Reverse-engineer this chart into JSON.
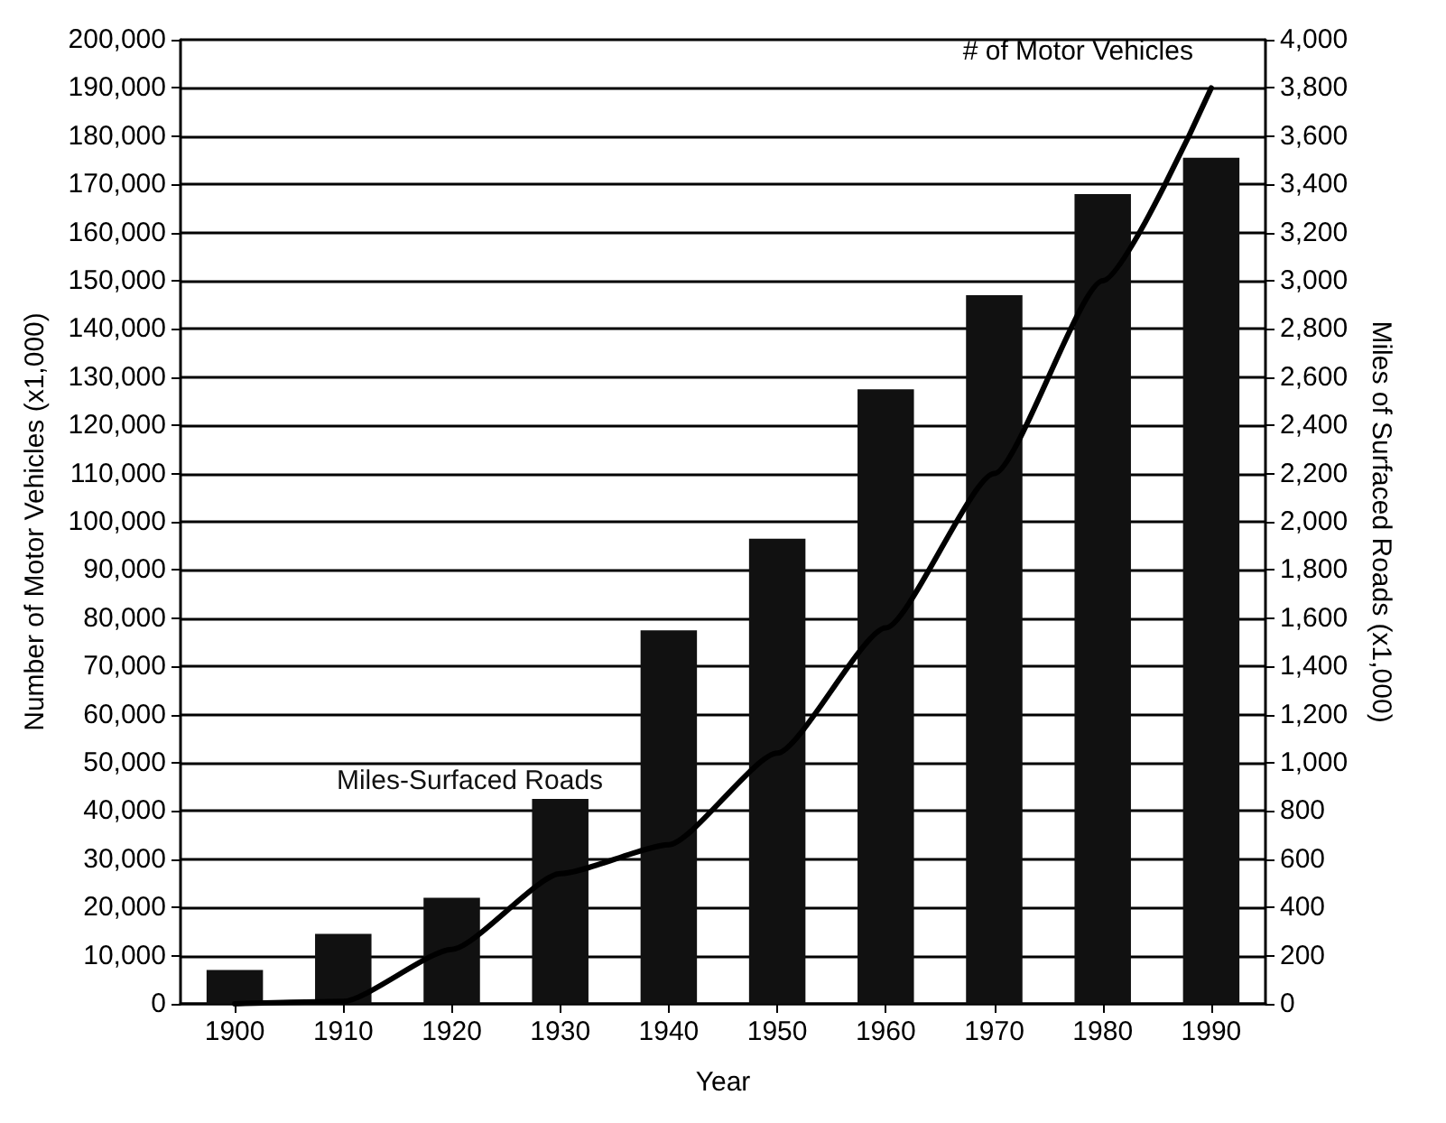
{
  "chart_data": {
    "type": "bar",
    "xlabel": "Year",
    "ylabel": "Number of Motor Vehicles (x1,000)",
    "y2label": "Miles of Surfaced Roads (x1,000)",
    "categories": [
      "1900",
      "1910",
      "1920",
      "1930",
      "1940",
      "1950",
      "1960",
      "1970",
      "1980",
      "1990"
    ],
    "series": [
      {
        "name": "Miles-Surfaced Roads",
        "axis": "y2",
        "color": "#111111",
        "values": [
          140,
          290,
          440,
          850,
          1550,
          1930,
          2550,
          2940,
          3360,
          3510
        ]
      },
      {
        "name": "# of Motor Vehicles",
        "type": "line",
        "axis": "y",
        "color": "#000000",
        "values": [
          0,
          500,
          11300,
          27000,
          33000,
          52000,
          78000,
          110000,
          150000,
          190000
        ]
      }
    ],
    "ylim": [
      0,
      200000
    ],
    "yticks": [
      {
        "value": 0,
        "label": "0"
      },
      {
        "value": 10000,
        "label": "10,000"
      },
      {
        "value": 20000,
        "label": "20,000"
      },
      {
        "value": 30000,
        "label": "30,000"
      },
      {
        "value": 40000,
        "label": "40,000"
      },
      {
        "value": 50000,
        "label": "50,000"
      },
      {
        "value": 60000,
        "label": "60,000"
      },
      {
        "value": 70000,
        "label": "70,000"
      },
      {
        "value": 80000,
        "label": "80,000"
      },
      {
        "value": 90000,
        "label": "90,000"
      },
      {
        "value": 100000,
        "label": "100,000"
      },
      {
        "value": 110000,
        "label": "110,000"
      },
      {
        "value": 120000,
        "label": "120,000"
      },
      {
        "value": 130000,
        "label": "130,000"
      },
      {
        "value": 140000,
        "label": "140,000"
      },
      {
        "value": 150000,
        "label": "150,000"
      },
      {
        "value": 160000,
        "label": "160,000"
      },
      {
        "value": 170000,
        "label": "170,000"
      },
      {
        "value": 180000,
        "label": "180,000"
      },
      {
        "value": 190000,
        "label": "190,000"
      },
      {
        "value": 200000,
        "label": "200,000"
      }
    ],
    "y2lim": [
      0,
      4000
    ],
    "y2ticks": [
      {
        "value": 0,
        "label": "0"
      },
      {
        "value": 200,
        "label": "200"
      },
      {
        "value": 400,
        "label": "400"
      },
      {
        "value": 600,
        "label": "600"
      },
      {
        "value": 800,
        "label": "800"
      },
      {
        "value": 1000,
        "label": "1,000"
      },
      {
        "value": 1200,
        "label": "1,200"
      },
      {
        "value": 1400,
        "label": "1,400"
      },
      {
        "value": 1600,
        "label": "1,600"
      },
      {
        "value": 1800,
        "label": "1,800"
      },
      {
        "value": 2000,
        "label": "2,000"
      },
      {
        "value": 2200,
        "label": "2,200"
      },
      {
        "value": 2400,
        "label": "2,400"
      },
      {
        "value": 2600,
        "label": "2,600"
      },
      {
        "value": 2800,
        "label": "2,800"
      },
      {
        "value": 3000,
        "label": "3,000"
      },
      {
        "value": 3200,
        "label": "3,200"
      },
      {
        "value": 3400,
        "label": "3,400"
      },
      {
        "value": 3600,
        "label": "3,600"
      },
      {
        "value": 3800,
        "label": "3,800"
      },
      {
        "value": 4000,
        "label": "4,000"
      }
    ],
    "grid": "y",
    "legend": false,
    "marker": "none",
    "line_style": "solid"
  }
}
